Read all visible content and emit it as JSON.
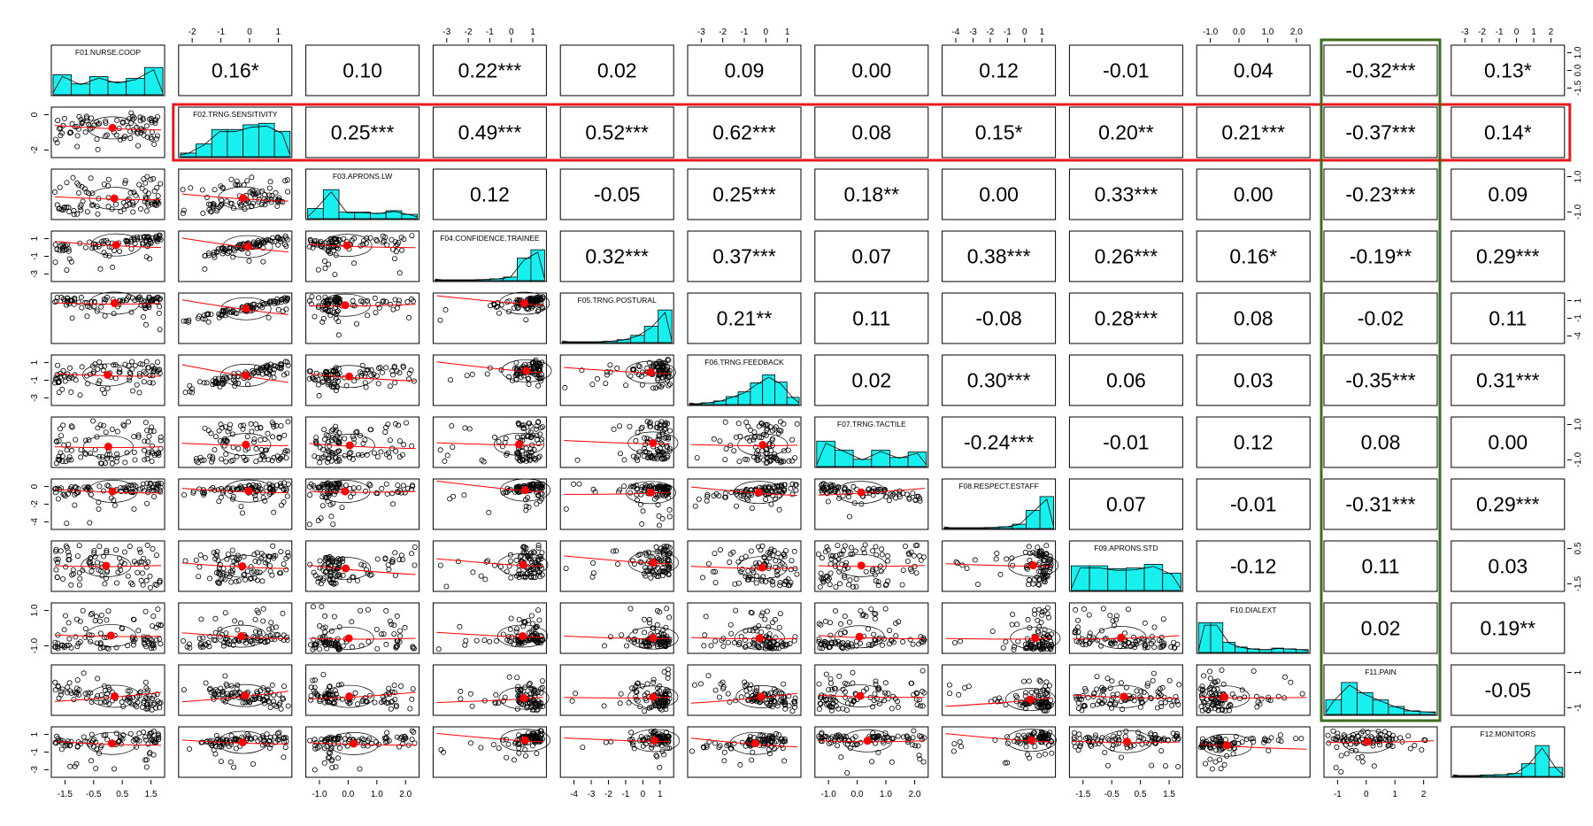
{
  "chart_data": {
    "type": "scatter-matrix",
    "title": "",
    "variables": [
      "F01.NURSE.COOP",
      "F02.TRNG.SENSITIVITY",
      "F03.APRONS.LW",
      "F04.CONFIDENCE.TRAINEE",
      "F05.TRNG.POSTURAL",
      "F06.TRNG.FEEDBACK",
      "F07.TRNG.TACTILE",
      "F08.RESPECT.ESTAFF",
      "F09.APRONS.STD",
      "F10.DIALEXT",
      "F11.PAIN",
      "F12.MONITORS"
    ],
    "correlations": [
      [
        "",
        "0.16*",
        "0.10",
        "0.22***",
        "0.02",
        "0.09",
        "0.00",
        "0.12",
        "-0.01",
        "0.04",
        "-0.32***",
        "0.13*"
      ],
      [
        "",
        "",
        "0.25***",
        "0.49***",
        "0.52***",
        "0.62***",
        "0.08",
        "0.15*",
        "0.20**",
        "0.21***",
        "-0.37***",
        "0.14*"
      ],
      [
        "",
        "",
        "",
        "0.12",
        "-0.05",
        "0.25***",
        "0.18**",
        "0.00",
        "0.33***",
        "0.00",
        "-0.23***",
        "0.09"
      ],
      [
        "",
        "",
        "",
        "",
        "0.32***",
        "0.37***",
        "0.07",
        "0.38***",
        "0.26***",
        "0.16*",
        "-0.19**",
        "0.29***"
      ],
      [
        "",
        "",
        "",
        "",
        "",
        "0.21**",
        "0.11",
        "-0.08",
        "0.28***",
        "0.08",
        "-0.02",
        "0.11"
      ],
      [
        "",
        "",
        "",
        "",
        "",
        "",
        "0.02",
        "0.30***",
        "0.06",
        "0.03",
        "-0.35***",
        "0.31***"
      ],
      [
        "",
        "",
        "",
        "",
        "",
        "",
        "",
        "-0.24***",
        "-0.01",
        "0.12",
        "0.08",
        "0.00"
      ],
      [
        "",
        "",
        "",
        "",
        "",
        "",
        "",
        "",
        "0.07",
        "-0.01",
        "-0.31***",
        "0.29***"
      ],
      [
        "",
        "",
        "",
        "",
        "",
        "",
        "",
        "",
        "",
        "-0.12",
        "0.11",
        "0.03"
      ],
      [
        "",
        "",
        "",
        "",
        "",
        "",
        "",
        "",
        "",
        "",
        "0.02",
        "0.19**"
      ],
      [
        "",
        "",
        "",
        "",
        "",
        "",
        "",
        "",
        "",
        "",
        "",
        "-0.05"
      ],
      [
        "",
        "",
        "",
        "",
        "",
        "",
        "",
        "",
        "",
        "",
        "",
        ""
      ]
    ],
    "histograms": [
      [
        0.55,
        0.3,
        0.5,
        0.35,
        0.45,
        0.75
      ],
      [
        0.1,
        0.35,
        0.75,
        0.75,
        0.88,
        0.92,
        0.7
      ],
      [
        0.28,
        0.8,
        0.18,
        0.18,
        0.15,
        0.22,
        0.12
      ],
      [
        0.02,
        0.02,
        0.02,
        0.03,
        0.05,
        0.1,
        0.62,
        0.85
      ],
      [
        0.02,
        0.02,
        0.02,
        0.04,
        0.08,
        0.2,
        0.45,
        0.9
      ],
      [
        0.02,
        0.05,
        0.1,
        0.22,
        0.35,
        0.6,
        0.82,
        0.62,
        0.2
      ],
      [
        0.7,
        0.45,
        0.2,
        0.45,
        0.25,
        0.4
      ],
      [
        0.02,
        0.02,
        0.02,
        0.03,
        0.05,
        0.12,
        0.5,
        0.88
      ],
      [
        0.68,
        0.68,
        0.6,
        0.62,
        0.72,
        0.48
      ],
      [
        0.82,
        0.82,
        0.28,
        0.15,
        0.1,
        0.08,
        0.12,
        0.1,
        0.08
      ],
      [
        0.4,
        0.88,
        0.6,
        0.4,
        0.22,
        0.1,
        0.07
      ],
      [
        0.02,
        0.02,
        0.04,
        0.05,
        0.08,
        0.35,
        0.85,
        0.25
      ]
    ],
    "axis_ticks": {
      "top": [
        {
          "panel": 1,
          "labels": [
            "-2",
            "-1",
            "0",
            "1"
          ]
        },
        {
          "panel": 3,
          "labels": [
            "-3",
            "-2",
            "-1",
            "0",
            "1"
          ]
        },
        {
          "panel": 5,
          "labels": [
            "-3",
            "-2",
            "-1",
            "0",
            "1"
          ]
        },
        {
          "panel": 7,
          "labels": [
            "-4",
            "-3",
            "-2",
            "-1",
            "0",
            "1"
          ]
        },
        {
          "panel": 9,
          "labels": [
            "-1.0",
            "0.0",
            "1.0",
            "2.0"
          ]
        },
        {
          "panel": 11,
          "labels": [
            "-3",
            "-2",
            "-1",
            "0",
            "1",
            "2"
          ]
        }
      ],
      "bottom": [
        {
          "panel": 0,
          "labels": [
            "-1.5",
            "-0.5",
            "0.5",
            "1.5"
          ]
        },
        {
          "panel": 2,
          "labels": [
            "-1.0",
            "0.0",
            "1.0",
            "2.0"
          ]
        },
        {
          "panel": 4,
          "labels": [
            "-4",
            "-3",
            "-2",
            "-1",
            "0",
            "1"
          ]
        },
        {
          "panel": 6,
          "labels": [
            "-1.0",
            "0.0",
            "1.0",
            "2.0"
          ]
        },
        {
          "panel": 8,
          "labels": [
            "-1.5",
            "-0.5",
            "0.5",
            "1.5"
          ]
        },
        {
          "panel": 10,
          "labels": [
            "-1",
            "0",
            "1",
            "2"
          ]
        }
      ],
      "left": [
        {
          "panel": 1,
          "labels": [
            "-2",
            "0"
          ]
        },
        {
          "panel": 3,
          "labels": [
            "-3",
            "-1",
            "1"
          ]
        },
        {
          "panel": 5,
          "labels": [
            "-3",
            "-1",
            "1"
          ]
        },
        {
          "panel": 7,
          "labels": [
            "-4",
            "-2",
            "0"
          ]
        },
        {
          "panel": 9,
          "labels": [
            "-1.0",
            "1.0"
          ]
        },
        {
          "panel": 11,
          "labels": [
            "-3",
            "-1",
            "1"
          ]
        }
      ],
      "right": [
        {
          "panel": 0,
          "labels": [
            "-1.5",
            "0.0",
            "1.0"
          ]
        },
        {
          "panel": 2,
          "labels": [
            "-1.0",
            "1.0"
          ]
        },
        {
          "panel": 4,
          "labels": [
            "-4",
            "-1",
            "1"
          ]
        },
        {
          "panel": 6,
          "labels": [
            "-1.0",
            "1.0"
          ]
        },
        {
          "panel": 8,
          "labels": [
            "-1.5",
            "0.5"
          ]
        },
        {
          "panel": 10,
          "labels": [
            "-1",
            "1"
          ]
        }
      ]
    },
    "highlights": [
      {
        "kind": "row",
        "index": 1,
        "color": "#e8191e"
      },
      {
        "kind": "column",
        "index": 10,
        "color": "#3d6b22"
      }
    ],
    "colors": {
      "histogram_fill": "#18f0f0",
      "points": "#000000",
      "loess": "#ff0000",
      "centroid": "#ff0000"
    }
  }
}
